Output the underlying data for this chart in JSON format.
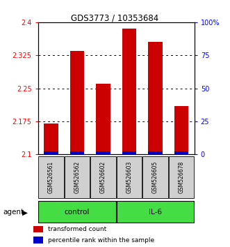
{
  "title": "GDS3773 / 10353684",
  "samples": [
    "GSM526561",
    "GSM526562",
    "GSM526602",
    "GSM526603",
    "GSM526605",
    "GSM526678"
  ],
  "red_values": [
    2.17,
    2.335,
    2.26,
    2.385,
    2.355,
    2.21
  ],
  "blue_values": [
    0.006,
    0.007,
    0.006,
    0.007,
    0.007,
    0.006
  ],
  "ymin": 2.1,
  "ymax": 2.4,
  "yticks_left": [
    2.1,
    2.175,
    2.25,
    2.325,
    2.4
  ],
  "yticks_right": [
    0,
    25,
    50,
    75,
    100
  ],
  "bar_width": 0.55,
  "red_color": "#cc0000",
  "blue_color": "#0000cc",
  "control_label": "control",
  "il6_label": "IL-6",
  "agent_label": "agent",
  "control_color": "#aaffaa",
  "il6_color": "#44dd44",
  "legend_red": "transformed count",
  "legend_blue": "percentile rank within the sample",
  "groups": [
    0,
    0,
    0,
    1,
    1,
    1
  ]
}
